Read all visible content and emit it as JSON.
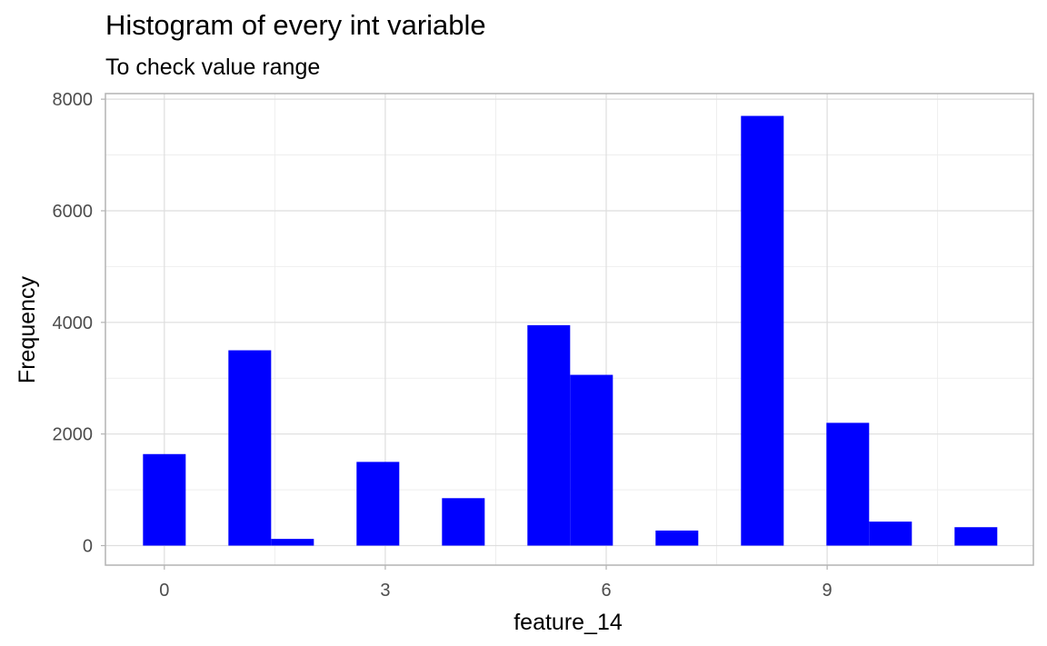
{
  "chart_data": {
    "type": "bar",
    "title": "Histogram of every int variable",
    "subtitle": "To check value range",
    "xlabel": "feature_14",
    "ylabel": "Frequency",
    "xlim": [
      -0.8,
      11.8
    ],
    "ylim": [
      -350,
      8100
    ],
    "x_ticks": [
      0,
      3,
      6,
      9
    ],
    "y_ticks": [
      0,
      2000,
      4000,
      6000,
      8000
    ],
    "grid": true,
    "bar_color": "#0000ff",
    "bins": [
      {
        "x0": -0.29,
        "x1": 0.29,
        "value": 1640
      },
      {
        "x0": 0.87,
        "x1": 1.45,
        "value": 3500
      },
      {
        "x0": 1.45,
        "x1": 2.03,
        "value": 120
      },
      {
        "x0": 2.61,
        "x1": 3.19,
        "value": 1500
      },
      {
        "x0": 3.77,
        "x1": 4.35,
        "value": 850
      },
      {
        "x0": 4.93,
        "x1": 5.51,
        "value": 3950
      },
      {
        "x0": 5.51,
        "x1": 6.09,
        "value": 3060
      },
      {
        "x0": 6.67,
        "x1": 7.25,
        "value": 270
      },
      {
        "x0": 7.83,
        "x1": 8.41,
        "value": 7700
      },
      {
        "x0": 8.99,
        "x1": 9.57,
        "value": 2200
      },
      {
        "x0": 9.57,
        "x1": 10.15,
        "value": 430
      },
      {
        "x0": 10.73,
        "x1": 11.31,
        "value": 330
      }
    ]
  }
}
